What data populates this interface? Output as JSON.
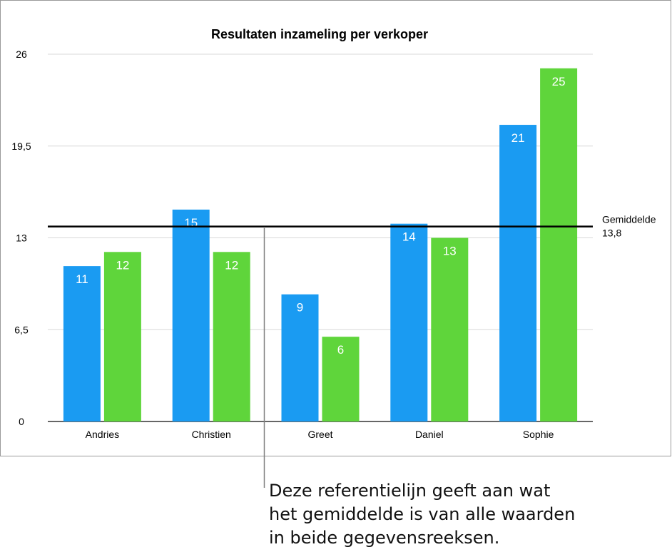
{
  "chart_data": {
    "type": "bar",
    "title": "Resultaten inzameling per verkoper",
    "categories": [
      "Andries",
      "Christien",
      "Greet",
      "Daniel",
      "Sophie"
    ],
    "series": [
      {
        "color": "#1a9bf2",
        "values": [
          11,
          15,
          9,
          14,
          21
        ]
      },
      {
        "color": "#5fd53b",
        "values": [
          12,
          12,
          6,
          13,
          25
        ]
      }
    ],
    "ylim": [
      0,
      26
    ],
    "yticks": [
      "0",
      "6,5",
      "13",
      "19,5",
      "26"
    ],
    "ytick_values": [
      0,
      6.5,
      13,
      19.5,
      26
    ],
    "grid": true,
    "data_labels": true,
    "reference_line": {
      "value": 13.8,
      "label": "Gemiddelde",
      "value_label": "13,8"
    }
  },
  "callout": {
    "lines": [
      "Deze referentielijn geeft aan wat",
      "het gemiddelde is van alle waarden",
      "in beide gegevensreeksen."
    ]
  }
}
